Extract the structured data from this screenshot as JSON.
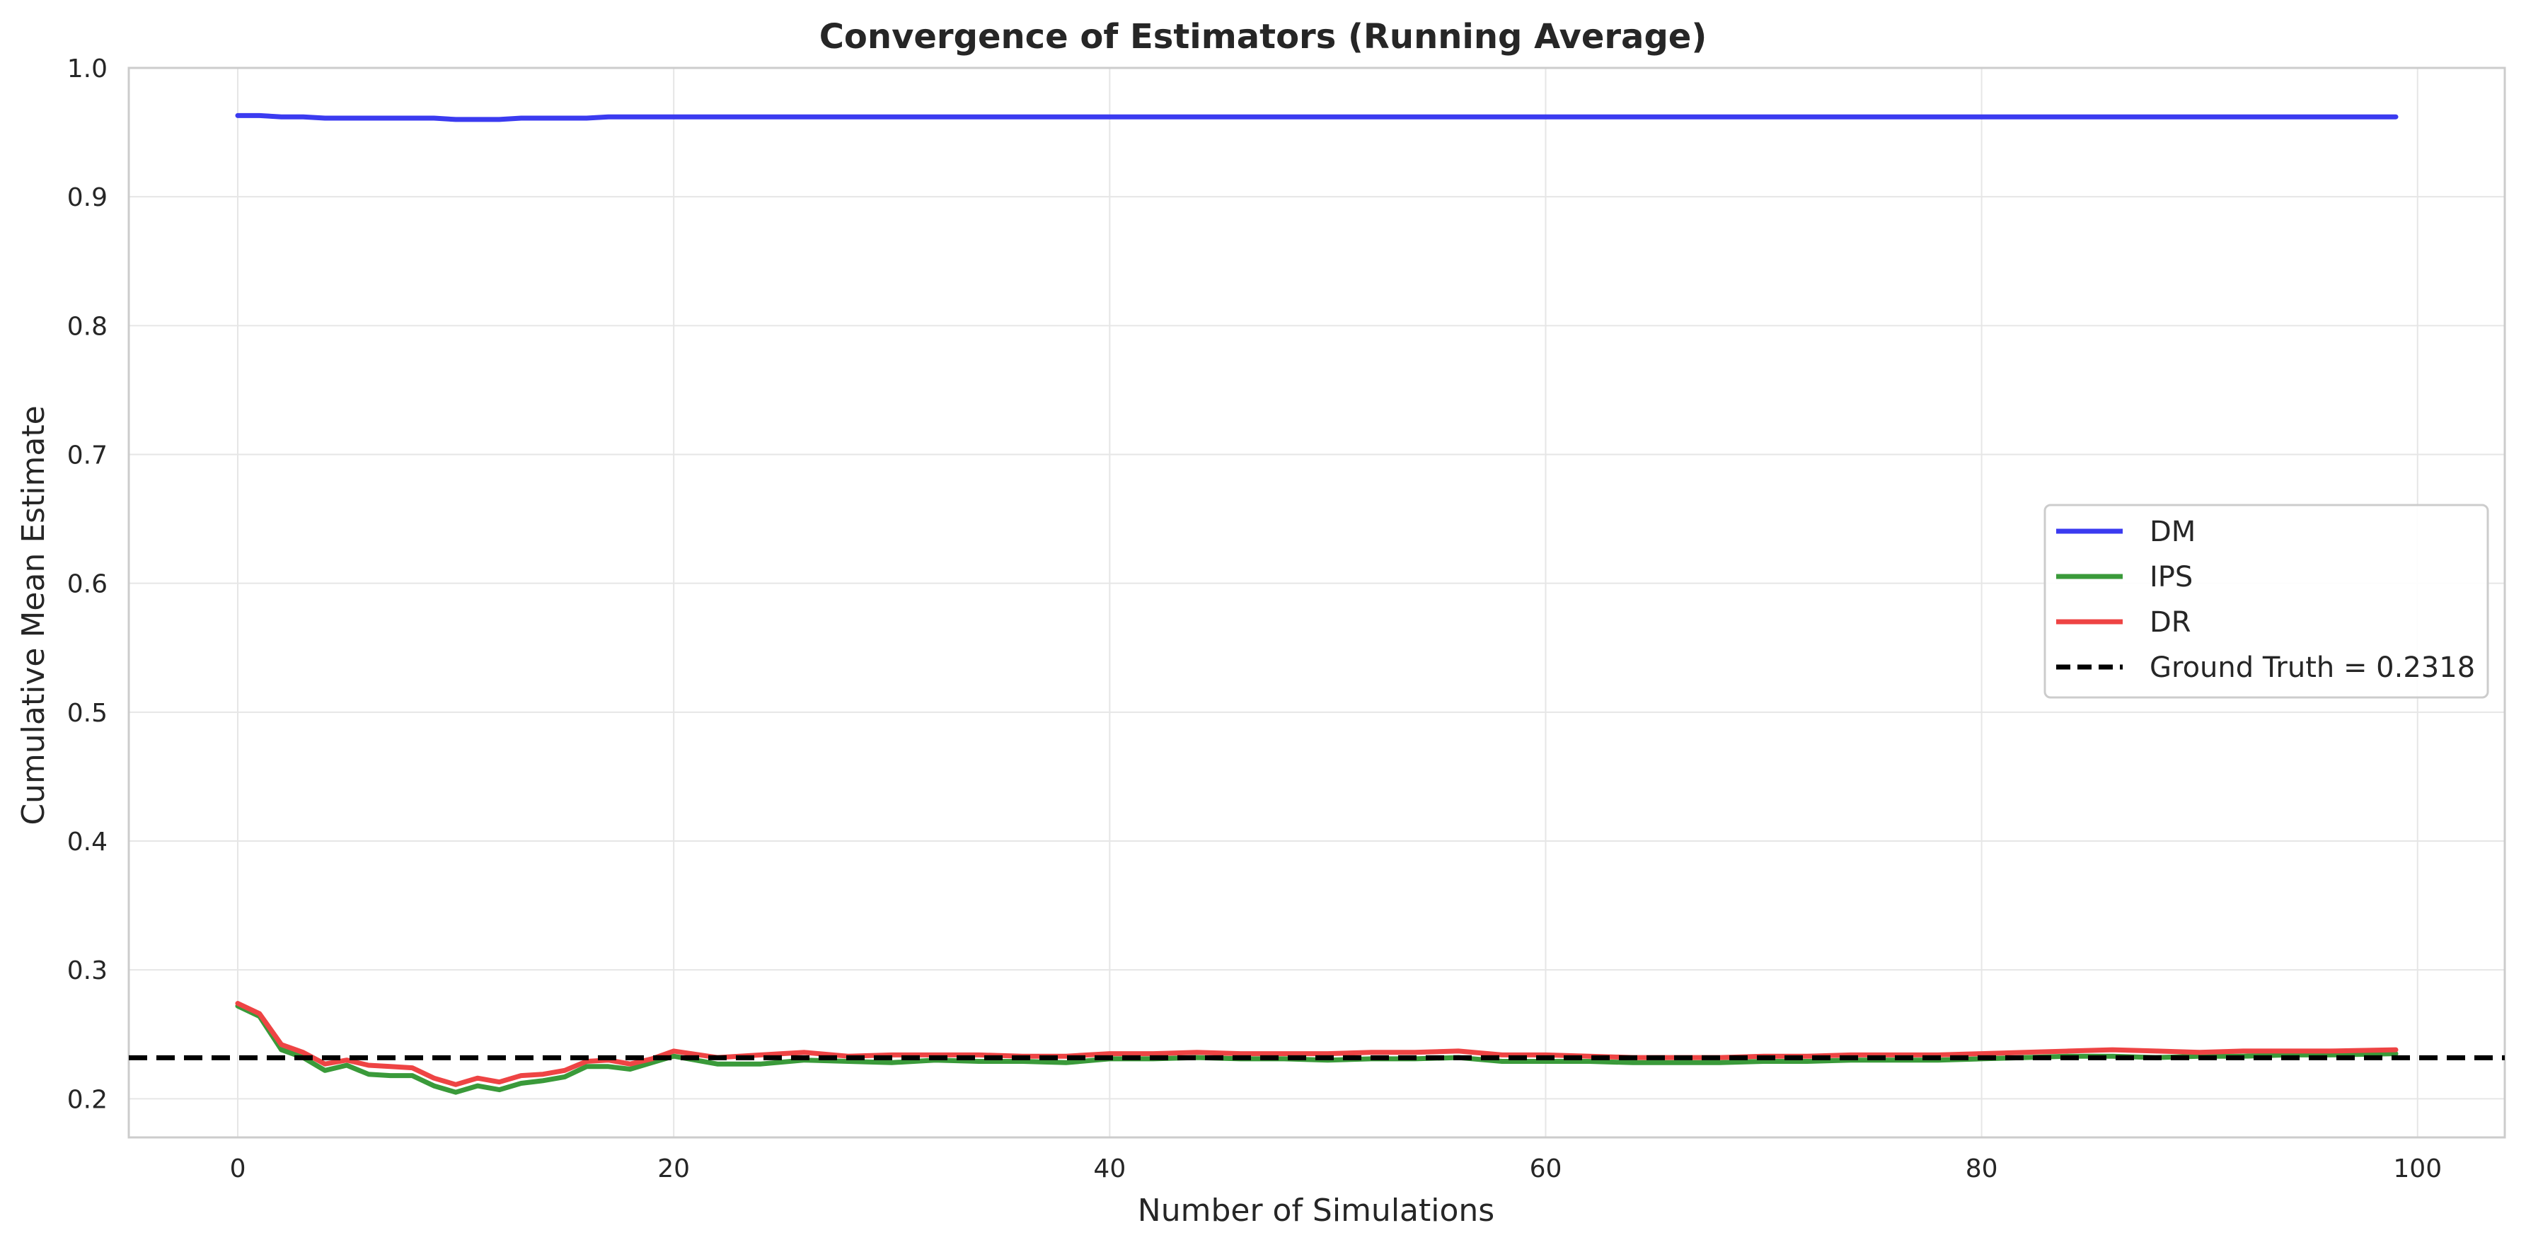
{
  "chart_data": {
    "type": "line",
    "title": "Convergence of Estimators (Running Average)",
    "xlabel": "Number of Simulations",
    "ylabel": "Cumulative Mean Estimate",
    "xlim": [
      -5,
      104
    ],
    "ylim": [
      0.17,
      1.0
    ],
    "xticks": [
      0,
      20,
      40,
      60,
      80,
      100
    ],
    "yticks": [
      0.2,
      0.3,
      0.4,
      0.5,
      0.6,
      0.7,
      0.8,
      0.9,
      1.0
    ],
    "grid": true,
    "legend_position": "center-right",
    "reference_line": {
      "name": "Ground Truth = 0.2318",
      "y": 0.2318,
      "color": "#000000",
      "style": "dashed"
    },
    "series": [
      {
        "name": "DM",
        "color": "#3b3bf0",
        "x": [
          0,
          1,
          2,
          3,
          4,
          5,
          6,
          7,
          8,
          9,
          10,
          11,
          12,
          13,
          14,
          15,
          16,
          17,
          18,
          19,
          20,
          25,
          30,
          35,
          40,
          45,
          50,
          55,
          60,
          65,
          70,
          75,
          80,
          85,
          90,
          95,
          99
        ],
        "values": [
          0.963,
          0.963,
          0.962,
          0.962,
          0.961,
          0.961,
          0.961,
          0.961,
          0.961,
          0.961,
          0.96,
          0.96,
          0.96,
          0.961,
          0.961,
          0.961,
          0.961,
          0.962,
          0.962,
          0.962,
          0.962,
          0.962,
          0.962,
          0.962,
          0.962,
          0.962,
          0.962,
          0.962,
          0.962,
          0.962,
          0.962,
          0.962,
          0.962,
          0.962,
          0.962,
          0.962,
          0.962
        ]
      },
      {
        "name": "IPS",
        "color": "#3a9a3a",
        "x": [
          0,
          1,
          2,
          3,
          4,
          5,
          6,
          7,
          8,
          9,
          10,
          11,
          12,
          13,
          14,
          15,
          16,
          17,
          18,
          19,
          20,
          22,
          24,
          26,
          28,
          30,
          32,
          34,
          36,
          38,
          40,
          42,
          44,
          46,
          48,
          50,
          52,
          54,
          56,
          58,
          60,
          62,
          64,
          66,
          68,
          70,
          72,
          74,
          76,
          78,
          80,
          82,
          84,
          86,
          88,
          90,
          92,
          94,
          96,
          99
        ],
        "values": [
          0.272,
          0.264,
          0.238,
          0.232,
          0.222,
          0.226,
          0.219,
          0.218,
          0.218,
          0.21,
          0.205,
          0.21,
          0.207,
          0.212,
          0.214,
          0.217,
          0.225,
          0.225,
          0.223,
          0.228,
          0.233,
          0.227,
          0.227,
          0.23,
          0.229,
          0.228,
          0.23,
          0.229,
          0.229,
          0.228,
          0.231,
          0.231,
          0.232,
          0.231,
          0.231,
          0.23,
          0.231,
          0.231,
          0.232,
          0.229,
          0.229,
          0.229,
          0.228,
          0.228,
          0.228,
          0.229,
          0.229,
          0.23,
          0.23,
          0.23,
          0.231,
          0.232,
          0.233,
          0.233,
          0.232,
          0.233,
          0.233,
          0.234,
          0.234,
          0.235
        ]
      },
      {
        "name": "DR",
        "color": "#ee4444",
        "x": [
          0,
          1,
          2,
          3,
          4,
          5,
          6,
          7,
          8,
          9,
          10,
          11,
          12,
          13,
          14,
          15,
          16,
          17,
          18,
          19,
          20,
          22,
          24,
          26,
          28,
          30,
          32,
          34,
          36,
          38,
          40,
          42,
          44,
          46,
          48,
          50,
          52,
          54,
          56,
          58,
          60,
          62,
          64,
          66,
          68,
          70,
          72,
          74,
          76,
          78,
          80,
          82,
          84,
          86,
          88,
          90,
          92,
          94,
          96,
          99
        ],
        "values": [
          0.274,
          0.266,
          0.242,
          0.236,
          0.227,
          0.23,
          0.226,
          0.225,
          0.224,
          0.216,
          0.211,
          0.216,
          0.213,
          0.218,
          0.219,
          0.222,
          0.229,
          0.23,
          0.227,
          0.231,
          0.237,
          0.232,
          0.234,
          0.236,
          0.233,
          0.234,
          0.234,
          0.234,
          0.233,
          0.233,
          0.235,
          0.235,
          0.236,
          0.235,
          0.235,
          0.235,
          0.236,
          0.236,
          0.237,
          0.234,
          0.234,
          0.233,
          0.232,
          0.232,
          0.232,
          0.233,
          0.233,
          0.234,
          0.234,
          0.234,
          0.235,
          0.236,
          0.237,
          0.238,
          0.237,
          0.236,
          0.237,
          0.237,
          0.237,
          0.238
        ]
      }
    ]
  }
}
